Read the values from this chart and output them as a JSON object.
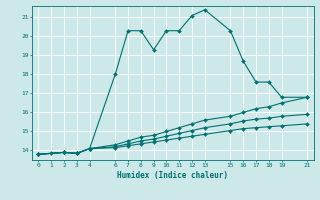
{
  "xlabel": "Humidex (Indice chaleur)",
  "bg_color": "#cce8e8",
  "grid_color": "#ffffff",
  "line_color": "#007070",
  "xlim": [
    -0.5,
    21.5
  ],
  "ylim": [
    13.5,
    21.6
  ],
  "xticks": [
    0,
    1,
    2,
    3,
    4,
    6,
    7,
    8,
    9,
    10,
    11,
    12,
    13,
    15,
    16,
    17,
    18,
    19,
    21
  ],
  "yticks": [
    14,
    15,
    16,
    17,
    18,
    19,
    20,
    21
  ],
  "series": [
    {
      "x": [
        0,
        1,
        2,
        3,
        4,
        6,
        7,
        8,
        9,
        10,
        11,
        12,
        13,
        15,
        16,
        17,
        18,
        19,
        21
      ],
      "y": [
        13.8,
        13.85,
        13.9,
        13.85,
        14.1,
        18.0,
        20.3,
        20.3,
        19.3,
        20.3,
        20.3,
        21.1,
        21.4,
        20.3,
        18.7,
        17.6,
        17.6,
        16.8,
        16.8
      ]
    },
    {
      "x": [
        0,
        2,
        3,
        4,
        6,
        7,
        8,
        9,
        10,
        11,
        12,
        13,
        15,
        16,
        17,
        18,
        19,
        21
      ],
      "y": [
        13.8,
        13.9,
        13.85,
        14.1,
        14.3,
        14.5,
        14.7,
        14.8,
        15.0,
        15.2,
        15.4,
        15.6,
        15.8,
        16.0,
        16.2,
        16.3,
        16.5,
        16.8
      ]
    },
    {
      "x": [
        0,
        2,
        3,
        4,
        6,
        7,
        8,
        9,
        10,
        11,
        12,
        13,
        15,
        16,
        17,
        18,
        19,
        21
      ],
      "y": [
        13.8,
        13.9,
        13.85,
        14.1,
        14.2,
        14.35,
        14.5,
        14.6,
        14.75,
        14.9,
        15.05,
        15.2,
        15.4,
        15.55,
        15.65,
        15.7,
        15.8,
        15.9
      ]
    },
    {
      "x": [
        0,
        2,
        3,
        4,
        6,
        7,
        8,
        9,
        10,
        11,
        12,
        13,
        15,
        16,
        17,
        18,
        19,
        21
      ],
      "y": [
        13.8,
        13.9,
        13.85,
        14.1,
        14.15,
        14.25,
        14.35,
        14.45,
        14.55,
        14.65,
        14.75,
        14.85,
        15.05,
        15.15,
        15.2,
        15.25,
        15.3,
        15.4
      ]
    }
  ]
}
